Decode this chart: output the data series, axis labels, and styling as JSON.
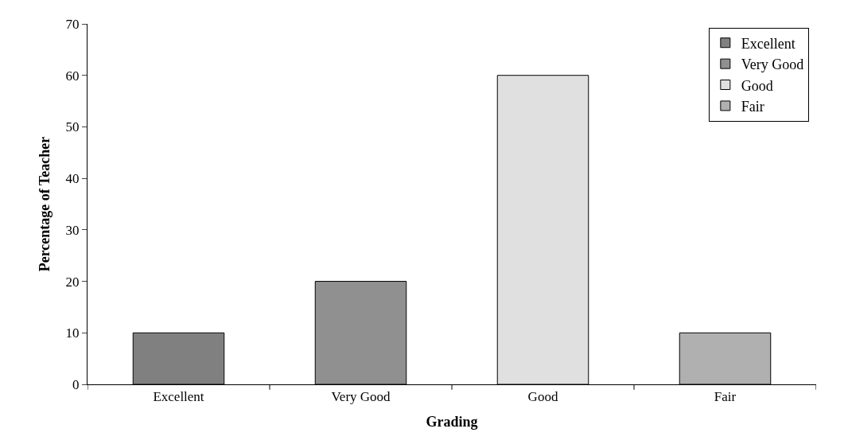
{
  "chart_data": {
    "type": "bar",
    "xlabel": "Grading",
    "ylabel": "Percentage of Teacher",
    "categories": [
      "Excellent",
      "Very Good",
      "Good",
      "Fair"
    ],
    "series": [
      {
        "name": "Excellent",
        "color": "#808080",
        "values": [
          10,
          null,
          null,
          null
        ]
      },
      {
        "name": "Very Good",
        "color": "#909090",
        "values": [
          null,
          20,
          null,
          null
        ]
      },
      {
        "name": "Good",
        "color": "#e0e0e0",
        "values": [
          null,
          null,
          60,
          null
        ]
      },
      {
        "name": "Fair",
        "color": "#b0b0b0",
        "values": [
          null,
          null,
          null,
          10
        ]
      }
    ],
    "ylim": [
      0,
      70
    ],
    "yticks": [
      0,
      10,
      20,
      30,
      40,
      50,
      60,
      70
    ],
    "grid": false,
    "legend": "top right"
  }
}
